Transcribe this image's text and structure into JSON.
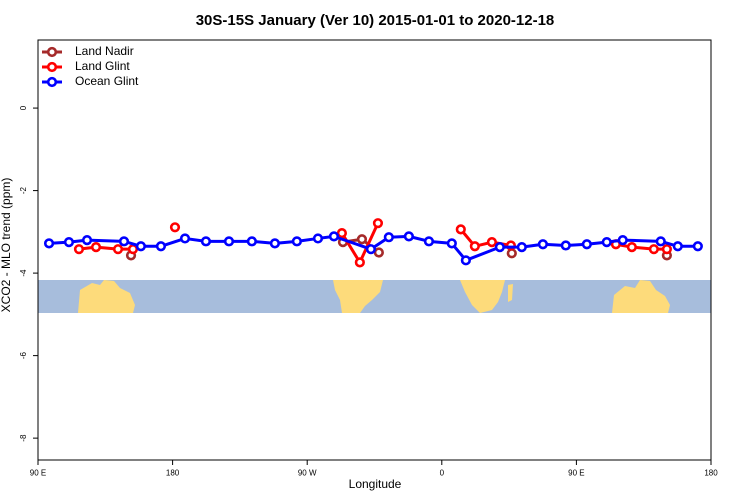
{
  "chart_data": {
    "type": "line",
    "title": "30S-15S January (Ver 10)   2015-01-01 to 2020-12-18",
    "x_label": "Longitude",
    "y_label": "XCO2 - MLO trend (ppm)",
    "xlim": [
      90,
      540
    ],
    "ylim": [
      -8.53,
      1.65
    ],
    "xticks": [
      {
        "value": 90,
        "label": "90 E"
      },
      180,
      {
        "value": 270,
        "label": "90 W"
      },
      {
        "value": 360,
        "label": "0"
      },
      {
        "value": 450,
        "label": "90 E"
      },
      {
        "value": 540,
        "label": "180"
      }
    ],
    "yticks": [
      0,
      -2,
      -4,
      -6,
      -8
    ],
    "legend": "top-left",
    "series": [
      {
        "name": "Land Nadir",
        "color": "#a52a2a",
        "x": [
          152.2,
          null,
          293.9,
          306.6,
          317.9,
          null,
          406.8,
          null,
          510.5
        ],
        "values": [
          -3.57,
          null,
          -3.25,
          -3.18,
          -3.5,
          null,
          -3.52,
          null,
          -3.57
        ]
      },
      {
        "name": "Land Glint",
        "color": "#ff0000",
        "x": [
          117.4,
          128.8,
          143.5,
          153.5,
          null,
          181.6,
          null,
          293.2,
          305.2,
          317.3,
          null,
          372.7,
          382.1,
          393.5,
          406.2,
          null,
          476.4,
          487.1,
          501.8,
          510.5
        ],
        "values": [
          -3.42,
          -3.37,
          -3.42,
          -3.42,
          null,
          -2.89,
          null,
          -3.03,
          -3.74,
          -2.79,
          null,
          -2.94,
          -3.35,
          -3.25,
          -3.33,
          null,
          -3.3,
          -3.37,
          -3.42,
          -3.42
        ]
      },
      {
        "name": "Ocean Glint",
        "color": "#0000ff",
        "x": [
          97.4,
          110.7,
          122.8,
          147.5,
          158.8,
          172.2,
          188.3,
          202.3,
          217.7,
          233.0,
          248.4,
          263.1,
          277.2,
          287.9,
          312.6,
          324.6,
          338.0,
          351.4,
          366.7,
          376.1,
          398.8,
          413.5,
          427.6,
          442.9,
          457.0,
          470.3,
          481.0,
          506.4,
          517.8,
          531.2
        ],
        "values": [
          -3.28,
          -3.25,
          -3.2,
          -3.23,
          -3.35,
          -3.35,
          -3.16,
          -3.23,
          -3.23,
          -3.23,
          -3.28,
          -3.23,
          -3.16,
          -3.11,
          -3.42,
          -3.13,
          -3.11,
          -3.23,
          -3.28,
          -3.69,
          -3.37,
          -3.37,
          -3.3,
          -3.33,
          -3.3,
          -3.25,
          -3.2,
          -3.23,
          -3.35,
          -3.35
        ]
      }
    ]
  }
}
